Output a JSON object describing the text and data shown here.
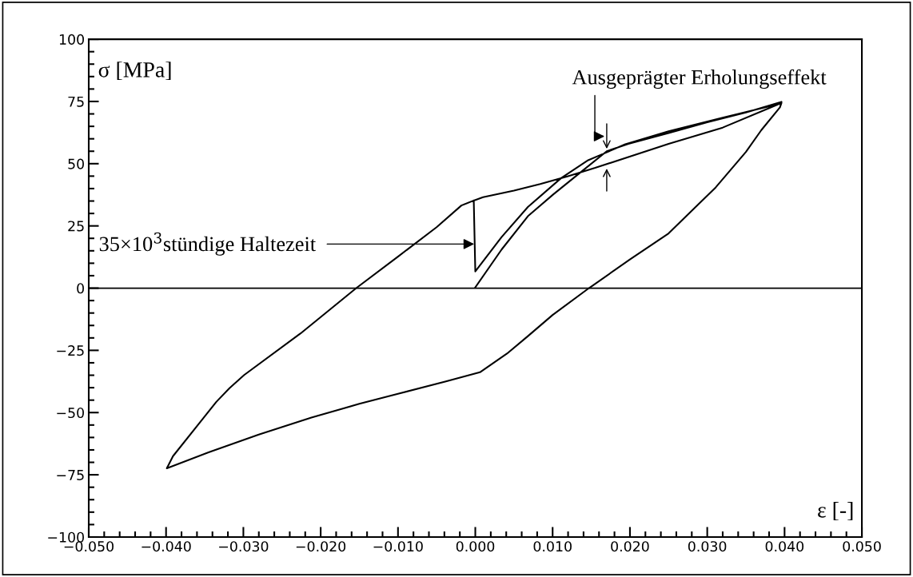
{
  "chart_data": {
    "type": "line",
    "xlabel": "ε [-]",
    "ylabel": "σ [MPa]",
    "series": [
      {
        "color": "#000000",
        "x": [
          0.0,
          0.0034,
          0.0068,
          0.0101,
          0.014,
          0.017,
          0.0198,
          0.025,
          0.03,
          0.035,
          0.0396,
          0.0394,
          0.037,
          0.035,
          0.0311,
          0.025,
          0.02,
          0.0147,
          0.01,
          0.0068,
          0.0041,
          0.0006,
          -0.0038,
          -0.0099,
          -0.015,
          -0.0212,
          -0.028,
          -0.0345,
          -0.0399,
          -0.0391,
          -0.0335,
          -0.0318,
          -0.0299,
          -0.0226,
          -0.0154,
          -0.0099,
          -0.005,
          -0.0018,
          -0.0002,
          0.001,
          0.005,
          0.0084,
          0.012,
          0.0155,
          0.025,
          0.032,
          0.0382,
          0.0396,
          0.0394,
          0.037,
          0.035,
          0.0311,
          0.025,
          0.02,
          0.0147,
          0.01,
          0.0068,
          0.0041,
          0.0006,
          -0.0038,
          -0.0099,
          -0.015,
          -0.0212,
          -0.028,
          -0.0345,
          -0.0399,
          -0.0391,
          -0.0335,
          -0.0318,
          -0.0299,
          -0.0226,
          -0.0154,
          -0.0099,
          -0.005,
          -0.0018,
          -0.0002,
          0.0,
          0.0034,
          0.0068,
          0.0111,
          0.0146,
          0.0162,
          0.0194,
          0.025,
          0.032,
          0.039,
          0.0396
        ],
        "values": [
          0.3,
          15.5,
          28.9,
          37.7,
          47.5,
          55.0,
          58.0,
          62.3,
          66.6,
          70.6,
          74.8,
          72.6,
          63.5,
          54.7,
          40.5,
          22.0,
          11.5,
          0.0,
          -10.8,
          -19.3,
          -26.3,
          -33.8,
          -37.5,
          -42.4,
          -46.5,
          -52.0,
          -58.8,
          -66.0,
          -72.4,
          -67.5,
          -45.7,
          -40.2,
          -34.9,
          -18.2,
          0.0,
          12.9,
          24.5,
          33.2,
          35.2,
          36.5,
          39.2,
          41.8,
          45.0,
          48.3,
          58.0,
          64.5,
          72.6,
          74.4,
          72.6,
          63.5,
          54.7,
          40.5,
          22.0,
          11.5,
          0.0,
          -10.8,
          -19.3,
          -26.3,
          -33.8,
          -37.5,
          -42.4,
          -46.5,
          -52.0,
          -58.8,
          -66.0,
          -72.4,
          -67.5,
          -45.7,
          -40.2,
          -34.9,
          -18.2,
          0.0,
          12.9,
          24.5,
          33.2,
          35.2,
          6.7,
          20.5,
          32.6,
          44.2,
          51.4,
          53.5,
          57.8,
          63.0,
          68.5,
          73.8,
          74.8
        ]
      }
    ],
    "xlim": [
      -0.05,
      0.05
    ],
    "xticks": [
      {
        "value": -0.05,
        "label": "−0.050"
      },
      {
        "value": -0.04,
        "label": "−0.040"
      },
      {
        "value": -0.03,
        "label": "−0.030"
      },
      {
        "value": -0.02,
        "label": "−0.020"
      },
      {
        "value": -0.01,
        "label": "−0.010"
      },
      {
        "value": 0.0,
        "label": "0.000"
      },
      {
        "value": 0.01,
        "label": "0.010"
      },
      {
        "value": 0.02,
        "label": "0.020"
      },
      {
        "value": 0.03,
        "label": "0.030"
      },
      {
        "value": 0.04,
        "label": "0.040"
      },
      {
        "value": 0.05,
        "label": "0.050"
      }
    ],
    "ylim": [
      -100,
      100
    ],
    "yticks": [
      {
        "value": -100,
        "label": "−100"
      },
      {
        "value": -75,
        "label": "−75"
      },
      {
        "value": -50,
        "label": "−50"
      },
      {
        "value": -25,
        "label": "−25"
      },
      0,
      25,
      50,
      75,
      100
    ],
    "ref_lines": [
      {
        "axis": "y",
        "value": 0,
        "color": "#000000",
        "line_style": "solid"
      }
    ],
    "annotations": [
      {
        "text": "35×10$^{3}$stündige Haltezeit",
        "x": 0.0,
        "y": 17.7
      },
      {
        "text": "Ausgeprägter Erholungseffekt",
        "x": 0.017,
        "y": 56
      }
    ],
    "grid": false,
    "legend": false,
    "marker": "none",
    "line_style": "solid"
  }
}
